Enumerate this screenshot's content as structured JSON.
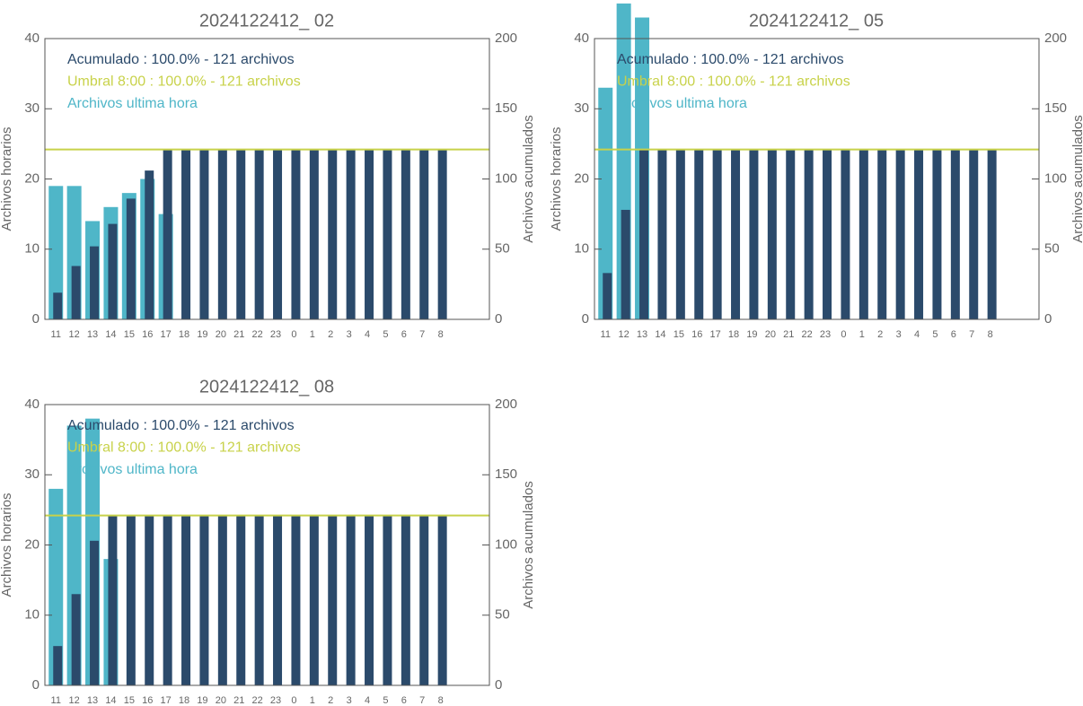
{
  "chart_data": [
    {
      "type": "bar",
      "title": "2024122412_ 02",
      "ylabel": "Archivos horarios",
      "y2label": "Archivos acumulados",
      "categories": [
        "11",
        "12",
        "13",
        "14",
        "15",
        "16",
        "17",
        "18",
        "19",
        "20",
        "21",
        "22",
        "23",
        "0",
        "1",
        "2",
        "3",
        "4",
        "5",
        "6",
        "7",
        "8"
      ],
      "series": [
        {
          "name": "Archivos ultima hora",
          "color": "#4fb6c8",
          "values": [
            19,
            19,
            14,
            16,
            18,
            20,
            15,
            null,
            null,
            null,
            null,
            null,
            null,
            null,
            null,
            null,
            null,
            null,
            null,
            null,
            null,
            null
          ]
        },
        {
          "name": "Acumulado : 100.0% - 121 archivos",
          "color": "#2b4a6b",
          "axis": "y2",
          "values": [
            19,
            38,
            52,
            68,
            86,
            106,
            121,
            121,
            121,
            121,
            121,
            121,
            121,
            121,
            121,
            121,
            121,
            121,
            121,
            121,
            121,
            121
          ]
        }
      ],
      "threshold": {
        "name": "Umbral 8:00 : 100.0% - 121 archivos",
        "value": 121,
        "color": "#c8d24a",
        "axis": "y2"
      },
      "ylim": [
        0,
        40
      ],
      "yticks": [
        0,
        10,
        20,
        30,
        40
      ],
      "y2lim": [
        0,
        200
      ],
      "y2ticks": [
        0,
        50,
        100,
        150,
        200
      ]
    },
    {
      "type": "bar",
      "title": "2024122412_ 05",
      "ylabel": "Archivos horarios",
      "y2label": "Archivos acumulados",
      "categories": [
        "11",
        "12",
        "13",
        "14",
        "15",
        "16",
        "17",
        "18",
        "19",
        "20",
        "21",
        "22",
        "23",
        "0",
        "1",
        "2",
        "3",
        "4",
        "5",
        "6",
        "7",
        "8"
      ],
      "series": [
        {
          "name": "Archivos ultima hora",
          "color": "#4fb6c8",
          "values": [
            33,
            45,
            43,
            null,
            null,
            null,
            null,
            null,
            null,
            null,
            null,
            null,
            null,
            null,
            null,
            null,
            null,
            null,
            null,
            null,
            null,
            null
          ]
        },
        {
          "name": "Acumulado : 100.0% - 121 archivos",
          "color": "#2b4a6b",
          "axis": "y2",
          "values": [
            33,
            78,
            121,
            121,
            121,
            121,
            121,
            121,
            121,
            121,
            121,
            121,
            121,
            121,
            121,
            121,
            121,
            121,
            121,
            121,
            121,
            121
          ]
        }
      ],
      "threshold": {
        "name": "Umbral 8:00 : 100.0% - 121 archivos",
        "value": 121,
        "color": "#c8d24a",
        "axis": "y2"
      },
      "ylim": [
        0,
        40
      ],
      "yticks": [
        0,
        10,
        20,
        30,
        40
      ],
      "y2lim": [
        0,
        200
      ],
      "y2ticks": [
        0,
        50,
        100,
        150,
        200
      ]
    },
    {
      "type": "bar",
      "title": "2024122412_ 08",
      "ylabel": "Archivos horarios",
      "y2label": "Archivos acumulados",
      "categories": [
        "11",
        "12",
        "13",
        "14",
        "15",
        "16",
        "17",
        "18",
        "19",
        "20",
        "21",
        "22",
        "23",
        "0",
        "1",
        "2",
        "3",
        "4",
        "5",
        "6",
        "7",
        "8"
      ],
      "series": [
        {
          "name": "Archivos ultima hora",
          "color": "#4fb6c8",
          "values": [
            28,
            37,
            38,
            18,
            null,
            null,
            null,
            null,
            null,
            null,
            null,
            null,
            null,
            null,
            null,
            null,
            null,
            null,
            null,
            null,
            null,
            null
          ]
        },
        {
          "name": "Acumulado : 100.0% - 121 archivos",
          "color": "#2b4a6b",
          "axis": "y2",
          "values": [
            28,
            65,
            103,
            121,
            121,
            121,
            121,
            121,
            121,
            121,
            121,
            121,
            121,
            121,
            121,
            121,
            121,
            121,
            121,
            121,
            121,
            121
          ]
        }
      ],
      "threshold": {
        "name": "Umbral 8:00 : 100.0% - 121 archivos",
        "value": 121,
        "color": "#c8d24a",
        "axis": "y2"
      },
      "ylim": [
        0,
        40
      ],
      "yticks": [
        0,
        10,
        20,
        30,
        40
      ],
      "y2lim": [
        0,
        200
      ],
      "y2ticks": [
        0,
        50,
        100,
        150,
        200
      ]
    }
  ]
}
